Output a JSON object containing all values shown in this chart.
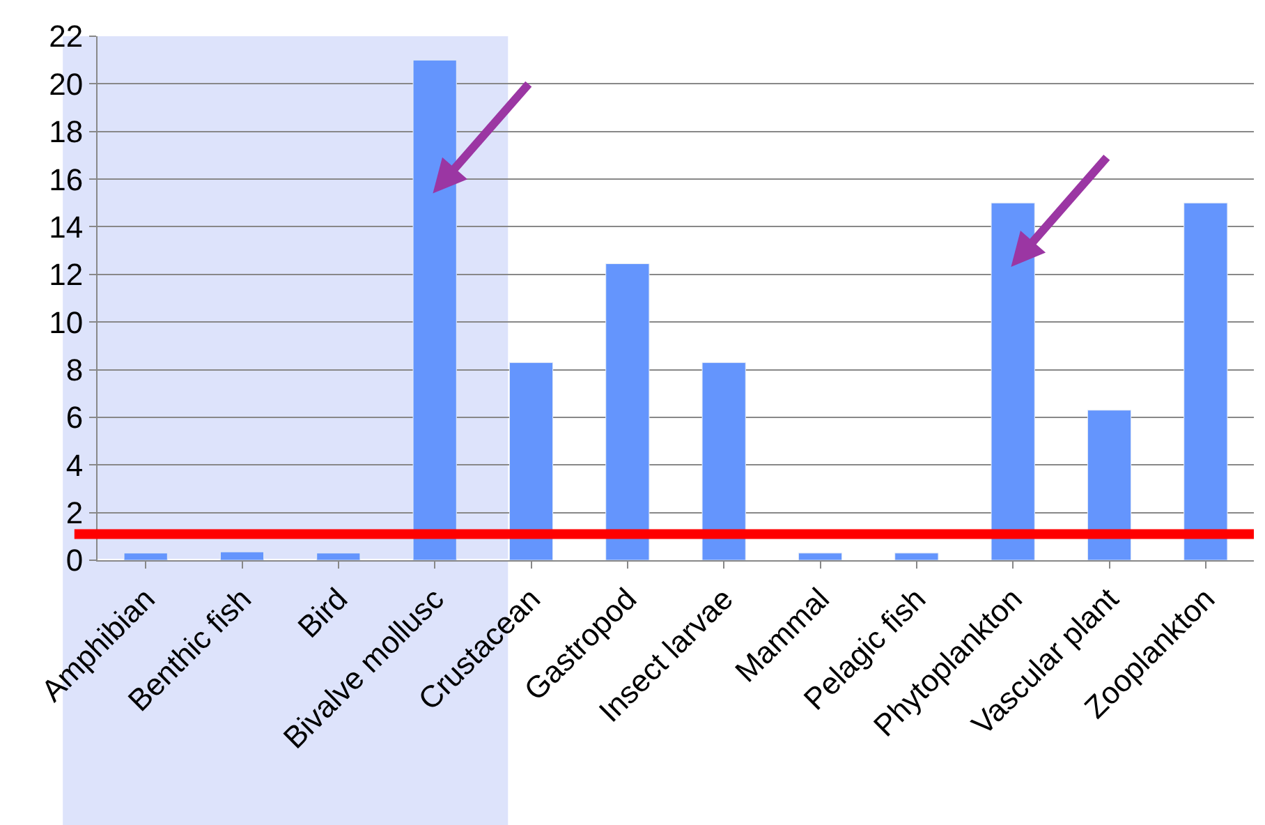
{
  "chart_data": {
    "type": "bar",
    "categories": [
      "Amphibian",
      "Benthic fish",
      "Bird",
      "Bivalve mollusc",
      "Crustacean",
      "Gastropod",
      "Insect larvae",
      "Mammal",
      "Pelagic fish",
      "Phytoplankton",
      "Vascular plant",
      "Zooplankton"
    ],
    "values": [
      0.3,
      0.35,
      0.3,
      21,
      8.3,
      12.45,
      8.3,
      0.3,
      0.3,
      15,
      6.3,
      15
    ],
    "color": "#6495fd",
    "ylim": [
      0,
      22
    ],
    "yticks": [
      0,
      2,
      4,
      6,
      8,
      10,
      12,
      14,
      16,
      18,
      20,
      22
    ],
    "grid": "y",
    "ref_lines": [
      {
        "axis": "y",
        "value": 1.1,
        "color": "#ff0000",
        "line_style": "solid"
      }
    ]
  }
}
